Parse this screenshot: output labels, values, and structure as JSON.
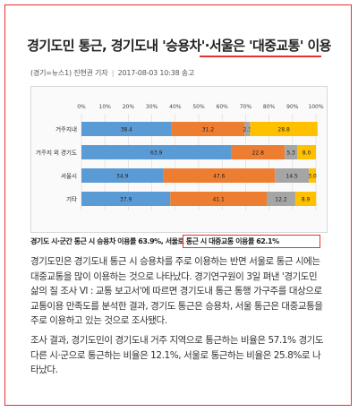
{
  "article": {
    "headline_part1": "경기도민 통근, 경기도내 '승용차'·",
    "headline_part2": "서울은 '대중교통' 이용",
    "source": "(경기=뉴스1)",
    "reporter": "진현권 기자",
    "timestamp": "2017-08-03 10:38 송고",
    "caption_part1": "경기도 시·군간 통근 시 승용차 이용률 63.9%,",
    "caption_part2": "서울로 통근 시 대중교통 이용률 62.1%",
    "paragraph1": "경기도민은 경기도내 통근 시 승용차를 주로 이용하는 반면 서울로 통근 시에는 대중교통을 많이 이용하는 것으로 나타났다. 경기연구원이 3일 펴낸 '경기도민 삶의 질 조사 Ⅵ : 교통 보고서'에 따르면 경기도내 통근 통행 가구주를 대상으로 교통이용 만족도를 분석한 결과, 경기도 통근은 승용차, 서울 통근은 대중교통을 주로 이용하고 있는 것으로 조사됐다.",
    "paragraph2": "조사 결과, 경기도민이 경기도내 거주 지역으로 통근하는 비율은 57.1% 경기도 다른 시·군으로 통근하는 비율은 12.1%, 서울로 통근하는 비율은 25.8%로 나타났다."
  },
  "chart_data": {
    "type": "bar",
    "orientation": "horizontal",
    "stacked": true,
    "xlim": [
      0,
      100
    ],
    "x_ticks": [
      "0%",
      "10%",
      "20%",
      "30%",
      "40%",
      "50%",
      "60%",
      "70%",
      "80%",
      "90%",
      "100%"
    ],
    "categories": [
      "거주지내",
      "거주지 외 경기도",
      "서울시",
      "기타"
    ],
    "series": [
      {
        "color": "#5b9bd5",
        "values": [
          38.4,
          63.9,
          34.9,
          37.9
        ]
      },
      {
        "color": "#ed7d31",
        "values": [
          31.2,
          22.8,
          47.6,
          41.1
        ]
      },
      {
        "color": "#a5a5a5",
        "values": [
          2.3,
          5.3,
          14.5,
          12.2
        ]
      },
      {
        "color": "#ffc000",
        "values": [
          28.8,
          8.0,
          3.0,
          8.9
        ]
      }
    ],
    "grid": true
  }
}
